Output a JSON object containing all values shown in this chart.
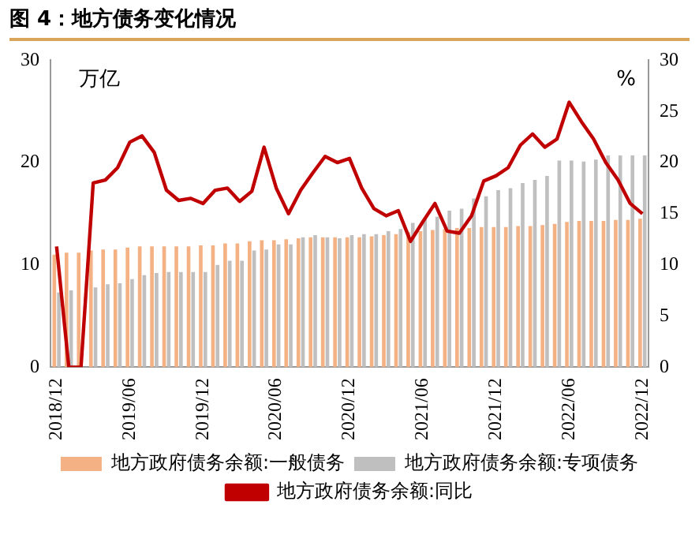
{
  "chart_data": {
    "type": "bar",
    "title": "图 4：地方债务变化情况",
    "categories": [
      "2018/12",
      null,
      null,
      null,
      null,
      null,
      "2019/06",
      null,
      null,
      null,
      null,
      null,
      "2019/12",
      null,
      null,
      null,
      null,
      null,
      "2020/06",
      null,
      null,
      null,
      null,
      null,
      "2020/12",
      null,
      null,
      null,
      null,
      null,
      "2021/06",
      null,
      null,
      null,
      null,
      null,
      "2021/12",
      null,
      null,
      null,
      null,
      null,
      "2022/06",
      null,
      null,
      null,
      null,
      null,
      "2022/12"
    ],
    "series": [
      {
        "name": "地方政府债务余额:一般债务",
        "color": "#f4b183",
        "values": [
          11.0,
          11.2,
          11.2,
          11.4,
          11.5,
          11.5,
          11.7,
          11.8,
          11.8,
          11.8,
          11.8,
          11.8,
          11.9,
          11.9,
          12.1,
          12.1,
          12.3,
          12.4,
          12.4,
          12.5,
          12.6,
          12.7,
          12.7,
          12.7,
          12.7,
          12.7,
          12.8,
          12.9,
          13.0,
          13.2,
          13.3,
          13.4,
          13.5,
          13.6,
          13.6,
          13.7,
          13.7,
          13.7,
          13.8,
          13.8,
          13.9,
          14.0,
          14.2,
          14.3,
          14.3,
          14.3,
          14.4,
          14.4,
          14.5
        ]
      },
      {
        "name": "地方政府债务余额:专项债务",
        "color": "#bfbfbf",
        "values": [
          7.3,
          7.5,
          null,
          7.8,
          8.1,
          8.2,
          8.6,
          9.0,
          9.2,
          9.3,
          9.3,
          9.3,
          9.3,
          10.0,
          10.4,
          10.4,
          11.4,
          11.5,
          12.0,
          12.0,
          12.7,
          12.9,
          12.7,
          12.6,
          12.9,
          13.0,
          13.0,
          13.3,
          13.5,
          14.1,
          14.5,
          14.7,
          15.3,
          15.5,
          16.5,
          16.7,
          17.3,
          17.5,
          18.0,
          18.3,
          18.7,
          20.2,
          20.2,
          20.1,
          20.3,
          20.7,
          20.7,
          20.7,
          20.7
        ]
      },
      {
        "name": "地方政府债务余额:同比",
        "type": "line",
        "axis": "y2",
        "color": "#c00000",
        "values": [
          11.8,
          0,
          0,
          18.0,
          18.3,
          19.5,
          22.0,
          22.6,
          21.0,
          17.3,
          16.3,
          16.5,
          16.0,
          17.3,
          17.5,
          16.2,
          17.2,
          21.5,
          17.5,
          15.0,
          17.3,
          19.0,
          20.6,
          20.0,
          20.4,
          17.5,
          15.5,
          14.8,
          15.3,
          12.3,
          14.2,
          16.0,
          13.3,
          13.1,
          14.8,
          18.2,
          18.7,
          19.5,
          21.7,
          22.8,
          21.5,
          22.3,
          25.9,
          24.0,
          22.3,
          20.0,
          18.3,
          16.0,
          15.0
        ]
      }
    ],
    "ylim": [
      0,
      30
    ],
    "yticks": [
      0,
      10,
      20,
      30
    ],
    "y2lim": [
      0,
      30
    ],
    "y2ticks": [
      0,
      5,
      10,
      15,
      20,
      25,
      30
    ],
    "annotations": [
      "万亿",
      "%"
    ],
    "grid": false,
    "legend": "bottom",
    "marker": "none",
    "line_style": "solid"
  }
}
